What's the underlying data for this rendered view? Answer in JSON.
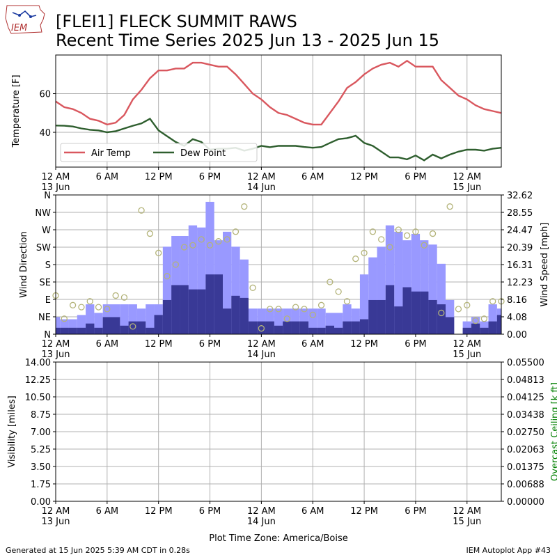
{
  "header": {
    "logo_text": "IEM",
    "title_line1": "[FLEI1] FLECK SUMMIT RAWS",
    "title_line2": "Recent Time Series 2025 Jun 13 - 2025 Jun 15"
  },
  "footer": {
    "generated": "Generated at 15 Jun 2025 5:39 AM CDT in 0.28s",
    "app": "IEM Autoplot App #43",
    "xaxis_label": "Plot Time Zone: America/Boise"
  },
  "colors": {
    "air_temp": "#d9575e",
    "dew_point": "#2e5e2e",
    "gust_bar": "#9999ff",
    "speed_bar": "#393996",
    "direction_marker": "#b4b47a",
    "ceiling_label": "#008000",
    "grid": "#b0b0b0"
  },
  "chart_data": [
    {
      "type": "line",
      "ylabel": "Temperature [F]",
      "yticks": [
        40,
        60
      ],
      "ylim": [
        22,
        80
      ],
      "grid": true,
      "legend": "lower-left",
      "x_hours": [
        0,
        1,
        2,
        3,
        4,
        5,
        6,
        7,
        8,
        9,
        10,
        11,
        12,
        13,
        14,
        15,
        16,
        17,
        18,
        19,
        20,
        21,
        22,
        23,
        24,
        25,
        26,
        27,
        28,
        29,
        30,
        31,
        32,
        33,
        34,
        35,
        36,
        37,
        38,
        39,
        40,
        41,
        42,
        43,
        44,
        45,
        46,
        47,
        48,
        49,
        50,
        51,
        52
      ],
      "series": [
        {
          "name": "Air Temp",
          "values": [
            56,
            53,
            52,
            50,
            47,
            46,
            44,
            45,
            49,
            57,
            62,
            68,
            72,
            72,
            73,
            73,
            76,
            76,
            75,
            74,
            74,
            70,
            65,
            60,
            57,
            53,
            50,
            49,
            47,
            45,
            44,
            44,
            50,
            56,
            63,
            66,
            70,
            73,
            75,
            76,
            74,
            77,
            74,
            74,
            74,
            67,
            63,
            59,
            57,
            54,
            52,
            51,
            50
          ]
        },
        {
          "name": "Dew Point",
          "values": [
            43.5,
            43.4,
            43,
            42,
            41.3,
            41,
            40,
            40.6,
            42,
            43.4,
            44.6,
            47,
            41,
            38,
            35,
            33,
            36.5,
            35,
            31,
            31.5,
            31.5,
            32,
            30.5,
            31.5,
            33,
            32.3,
            33,
            33,
            33,
            32.4,
            32,
            32.4,
            34.5,
            36.5,
            37,
            38.2,
            34.5,
            33,
            30,
            27,
            27,
            26,
            28,
            25.5,
            28.5,
            26.5,
            28.5,
            30,
            31,
            31,
            30.5,
            31.5,
            32
          ]
        }
      ]
    },
    {
      "type": "bar",
      "ylabel": "Wind Direction",
      "y2label": "Wind Speed [mph]",
      "direction_ticks": [
        "N",
        "NE",
        "E",
        "SE",
        "S",
        "SW",
        "W",
        "NW",
        "N"
      ],
      "speed_ticks": [
        "0.00",
        "4.08",
        "8.16",
        "12.23",
        "16.31",
        "20.39",
        "24.47",
        "28.55",
        "32.62"
      ],
      "speed_max": 32.62,
      "grid": true,
      "x_hours": [
        0,
        1,
        2,
        3,
        4,
        5,
        6,
        7,
        8,
        9,
        10,
        11,
        12,
        13,
        14,
        15,
        16,
        17,
        18,
        19,
        20,
        21,
        22,
        23,
        24,
        25,
        26,
        27,
        28,
        29,
        30,
        31,
        32,
        33,
        34,
        35,
        36,
        37,
        38,
        39,
        40,
        41,
        42,
        43,
        44,
        45,
        46,
        47,
        48,
        49,
        50,
        51,
        52
      ],
      "series": [
        {
          "name": "Wind Gust",
          "values": [
            4,
            3.5,
            3.5,
            4.5,
            7,
            5,
            7,
            7,
            7,
            7,
            6,
            7,
            7,
            20.5,
            23,
            23,
            25.5,
            25,
            31,
            22,
            24,
            20.5,
            17.5,
            6,
            6,
            6,
            6,
            6,
            6,
            6,
            6,
            6,
            5,
            5,
            7,
            6,
            14,
            18,
            20.5,
            25.5,
            24,
            22,
            23.5,
            22,
            21,
            16.5,
            8,
            0,
            3,
            4,
            3,
            7,
            6
          ]
        },
        {
          "name": "Wind Speed",
          "values": [
            1.5,
            1.5,
            1.5,
            1.5,
            2.5,
            1.5,
            4,
            4,
            2,
            3,
            3,
            1.5,
            4.5,
            8,
            11.5,
            11.5,
            10.5,
            10.5,
            14,
            14,
            6,
            9,
            8.5,
            3,
            3,
            3,
            2,
            3,
            3,
            3,
            1.5,
            1.5,
            2,
            1.5,
            3,
            3,
            3.5,
            8,
            8,
            11.5,
            6.5,
            11,
            10,
            10,
            8,
            7,
            4,
            0,
            1.5,
            2.5,
            1.5,
            3,
            4.5
          ]
        },
        {
          "name": "Wind Direction",
          "values": [
            100,
            40,
            75,
            70,
            85,
            70,
            65,
            100,
            95,
            20,
            320,
            260,
            210,
            150,
            180,
            225,
            230,
            245,
            230,
            240,
            245,
            265,
            330,
            120,
            15,
            65,
            65,
            40,
            70,
            65,
            50,
            75,
            135,
            110,
            85,
            195,
            210,
            265,
            245,
            225,
            270,
            255,
            265,
            230,
            260,
            55,
            330,
            65,
            75,
            35,
            40,
            85,
            85
          ]
        }
      ]
    },
    {
      "type": "line",
      "ylabel": "Visibility [miles]",
      "y2label": "Overcast Ceiling [k ft]",
      "yticks": [
        "0.00",
        "1.75",
        "3.50",
        "5.25",
        "7.00",
        "8.75",
        "10.50",
        "12.25",
        "14.00"
      ],
      "y2ticks": [
        "0.00000",
        "0.00688",
        "0.01375",
        "0.02063",
        "0.02750",
        "0.03438",
        "0.04125",
        "0.04813",
        "0.05500"
      ],
      "grid": true,
      "series": []
    }
  ],
  "xaxis": {
    "tick_labels": [
      "12 AM",
      "6 AM",
      "12 PM",
      "6 PM",
      "12 AM",
      "6 AM",
      "12 PM",
      "6 PM",
      "12 AM"
    ],
    "date_labels": [
      "13 Jun",
      "",
      "",
      "",
      "14 Jun",
      "",
      "",
      "",
      "15 Jun"
    ],
    "tick_hours": [
      0,
      6,
      12,
      18,
      24,
      30,
      36,
      42,
      48
    ],
    "range_hours": [
      0,
      52
    ]
  }
}
